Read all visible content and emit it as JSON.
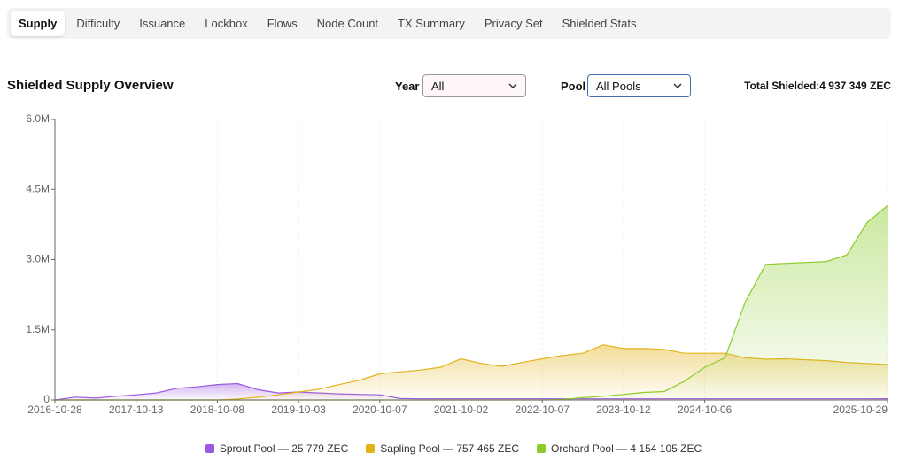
{
  "tabs": [
    "Supply",
    "Difficulty",
    "Issuance",
    "Lockbox",
    "Flows",
    "Node Count",
    "TX Summary",
    "Privacy Set",
    "Shielded Stats"
  ],
  "active_tab": 0,
  "controls": {
    "year_label": "Year",
    "year_value": "All",
    "pool_label": "Pool",
    "pool_value": "All Pools",
    "total_label": "Total Shielded:",
    "total_value": "4 937 349 ZEC"
  },
  "chart_data": {
    "type": "area",
    "title": "Shielded Supply Overview",
    "categories": [
      "2016-10-28",
      null,
      null,
      null,
      "2017-10-13",
      null,
      null,
      null,
      "2018-10-08",
      null,
      null,
      null,
      "2019-10-03",
      null,
      null,
      null,
      "2020-10-07",
      null,
      null,
      null,
      "2021-10-02",
      null,
      null,
      null,
      "2022-10-07",
      null,
      null,
      null,
      "2023-10-12",
      null,
      null,
      null,
      "2024-10-06",
      null,
      null,
      null,
      null,
      null,
      null,
      null,
      null,
      "2025-10-29"
    ],
    "series": [
      {
        "name": "Sprout Pool — 25 779 ZEC",
        "color": "#9b59e0",
        "values": [
          0,
          60000,
          40000,
          80000,
          110000,
          150000,
          250000,
          280000,
          330000,
          350000,
          220000,
          150000,
          170000,
          150000,
          130000,
          120000,
          110000,
          30000,
          25000,
          25000,
          25000,
          25000,
          25000,
          25000,
          25000,
          25000,
          25000,
          25000,
          25000,
          25000,
          25000,
          25000,
          25000,
          25000,
          25000,
          25000,
          25000,
          25000,
          25000,
          25000,
          25000,
          25779
        ]
      },
      {
        "name": "Sapling Pool — 757 465 ZEC",
        "color": "#e3b21b",
        "values": [
          0,
          0,
          0,
          0,
          0,
          0,
          0,
          0,
          0,
          20000,
          60000,
          110000,
          170000,
          230000,
          330000,
          420000,
          560000,
          600000,
          640000,
          700000,
          880000,
          780000,
          720000,
          800000,
          880000,
          950000,
          1000000,
          1180000,
          1100000,
          1100000,
          1080000,
          1000000,
          1000000,
          1000000,
          900000,
          870000,
          880000,
          860000,
          840000,
          800000,
          780000,
          757465
        ]
      },
      {
        "name": "Orchard Pool — 4 154 105 ZEC",
        "color": "#8ccc2a",
        "values": [
          0,
          0,
          0,
          0,
          0,
          0,
          0,
          0,
          0,
          0,
          0,
          0,
          0,
          0,
          0,
          0,
          0,
          0,
          0,
          0,
          0,
          0,
          0,
          0,
          0,
          10000,
          50000,
          80000,
          120000,
          160000,
          180000,
          400000,
          700000,
          900000,
          2100000,
          2900000,
          2920000,
          2940000,
          2960000,
          3100000,
          3800000,
          4154105
        ]
      }
    ],
    "ylim": [
      0,
      6000000
    ],
    "yticks": [
      0,
      {
        "value": 1500000,
        "label": "1.5M"
      },
      {
        "value": 3000000,
        "label": "3.0M"
      },
      {
        "value": 4500000,
        "label": "4.5M"
      },
      {
        "value": 6000000,
        "label": "6.0M"
      }
    ],
    "grid": true
  }
}
